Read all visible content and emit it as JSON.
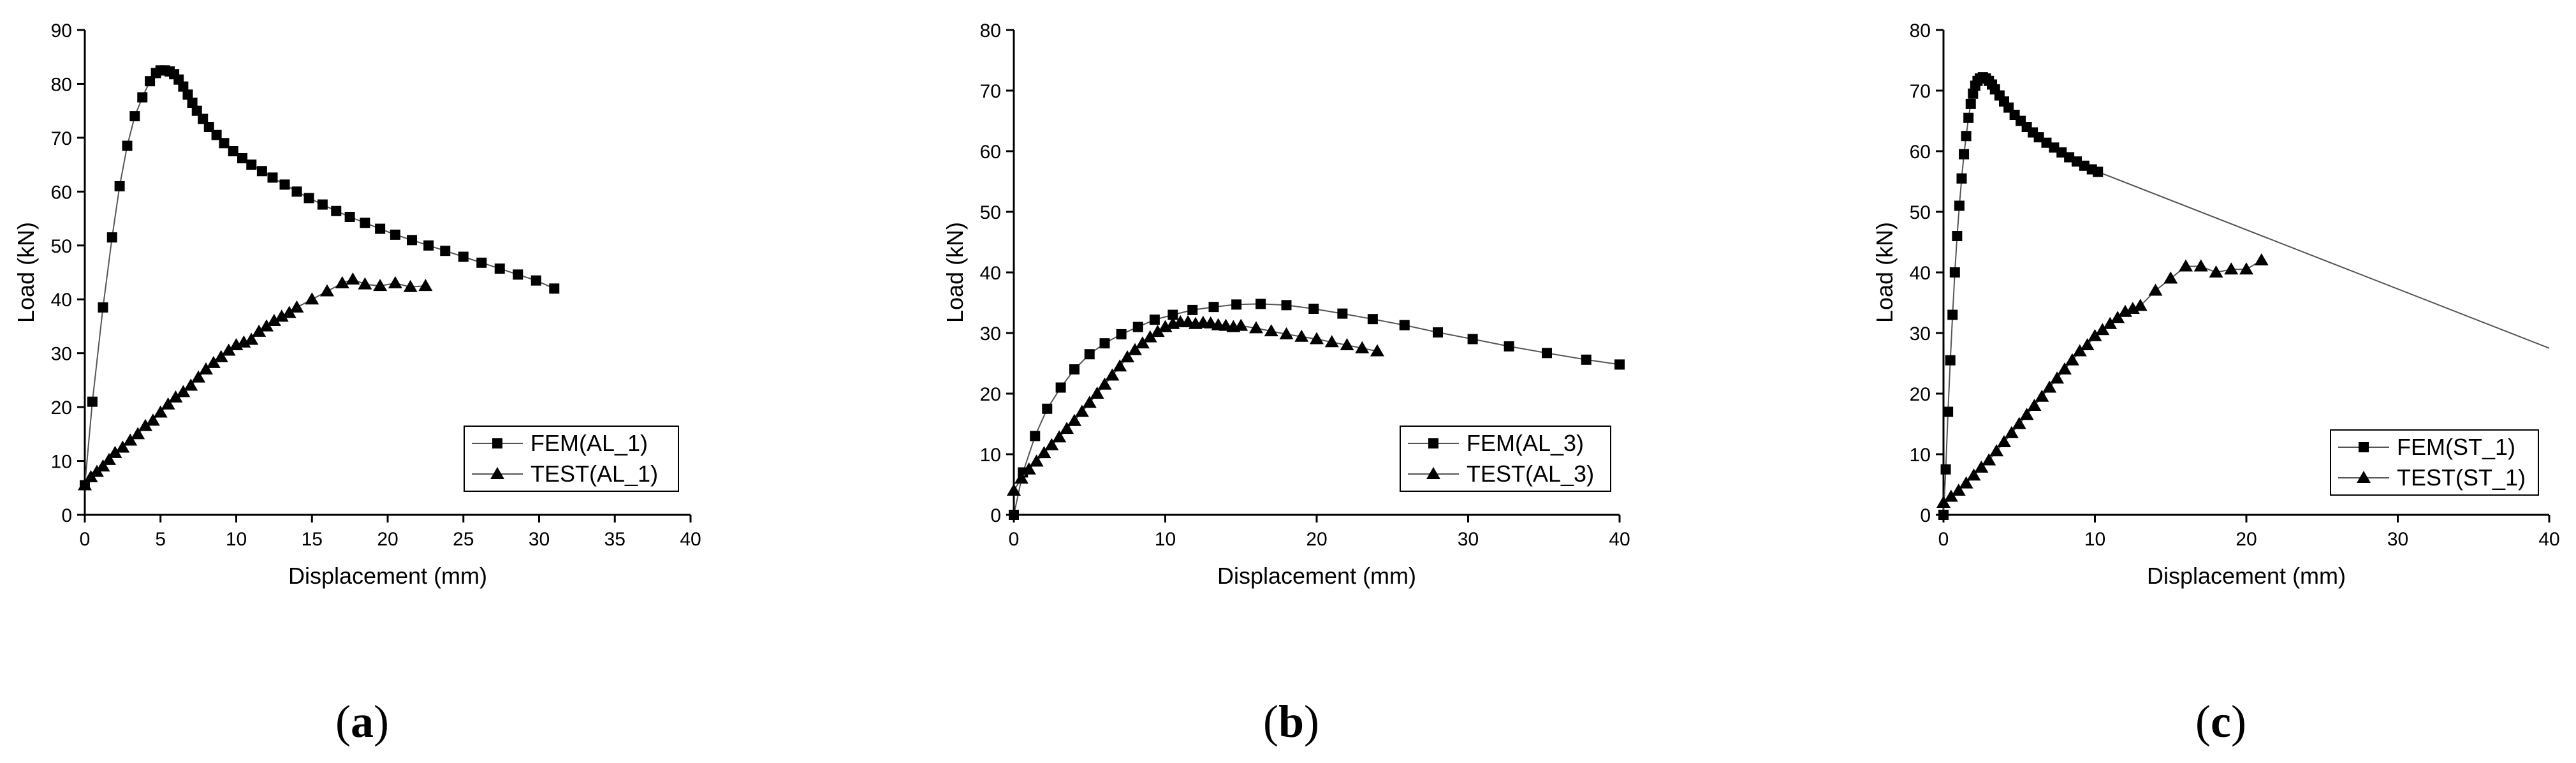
{
  "chart_data": [
    {
      "type": "line",
      "panel_label": "a",
      "xlabel": "Displacement (mm)",
      "ylabel": "Load (kN)",
      "xlim": [
        0,
        40
      ],
      "ylim": [
        0,
        90
      ],
      "xticks": [
        0,
        5,
        10,
        15,
        20,
        25,
        30,
        35,
        40
      ],
      "yticks": [
        0,
        10,
        20,
        30,
        40,
        50,
        60,
        70,
        80,
        90
      ],
      "legend_position": "bottom-right",
      "series": [
        {
          "name": "FEM(AL_1)",
          "marker": "square",
          "x": [
            0,
            0.5,
            1.2,
            1.8,
            2.3,
            2.8,
            3.3,
            3.8,
            4.3,
            4.7,
            5.0,
            5.3,
            5.6,
            5.9,
            6.2,
            6.5,
            6.8,
            7.1,
            7.4,
            7.8,
            8.2,
            8.7,
            9.2,
            9.8,
            10.4,
            11.0,
            11.7,
            12.4,
            13.2,
            14.0,
            14.8,
            15.7,
            16.6,
            17.5,
            18.5,
            19.5,
            20.5,
            21.6,
            22.7,
            23.8,
            25.0,
            26.2,
            27.4,
            28.6,
            29.8,
            31.0
          ],
          "y": [
            5.5,
            21,
            38.5,
            51.5,
            61,
            68.5,
            74,
            77.5,
            80.5,
            82,
            82.5,
            82.5,
            82.3,
            81.8,
            80.8,
            79.5,
            78,
            76.5,
            75,
            73.5,
            72,
            70.5,
            69,
            67.5,
            66.2,
            65,
            63.8,
            62.6,
            61.3,
            60,
            58.8,
            57.6,
            56.4,
            55.3,
            54.2,
            53.1,
            52,
            51,
            50,
            49,
            47.9,
            46.8,
            45.7,
            44.6,
            43.5,
            42
          ]
        },
        {
          "name": "TEST(AL_1)",
          "marker": "triangle",
          "x": [
            0,
            0.4,
            0.8,
            1.2,
            1.6,
            2.0,
            2.5,
            3.0,
            3.5,
            4.0,
            4.5,
            5.0,
            5.5,
            6.0,
            6.5,
            7.0,
            7.5,
            8.0,
            8.5,
            9.0,
            9.5,
            10.0,
            10.5,
            11.0,
            11.5,
            12.0,
            12.5,
            13.0,
            13.5,
            14.0,
            15.0,
            16.0,
            17.0,
            17.7,
            18.5,
            19.5,
            20.5,
            21.5,
            22.5
          ],
          "y": [
            5.5,
            7,
            8,
            9,
            10.2,
            11.5,
            12.5,
            13.8,
            15,
            16.5,
            17.5,
            19,
            20.5,
            21.8,
            22.8,
            24,
            25.5,
            27,
            28.2,
            29.3,
            30.5,
            31.5,
            32,
            32.5,
            34,
            35,
            36,
            36.8,
            37.5,
            38.5,
            40,
            41.5,
            43,
            43.7,
            42.8,
            42.5,
            43,
            42.3,
            42.5
          ]
        }
      ]
    },
    {
      "type": "line",
      "panel_label": "b",
      "xlabel": "Displacement (mm)",
      "ylabel": "Load (kN)",
      "xlim": [
        0,
        40
      ],
      "ylim": [
        0,
        80
      ],
      "xticks": [
        0,
        10,
        20,
        30,
        40
      ],
      "yticks": [
        0,
        10,
        20,
        30,
        40,
        50,
        60,
        70,
        80
      ],
      "legend_position": "bottom-right",
      "series": [
        {
          "name": "FEM(AL_3)",
          "marker": "square",
          "x": [
            0,
            0.6,
            1.4,
            2.2,
            3.1,
            4.0,
            5.0,
            6.0,
            7.1,
            8.2,
            9.3,
            10.5,
            11.8,
            13.2,
            14.7,
            16.3,
            18.0,
            19.8,
            21.7,
            23.7,
            25.8,
            28.0,
            30.3,
            32.7,
            35.2,
            37.8,
            40.0
          ],
          "y": [
            0,
            7,
            13,
            17.5,
            21,
            24,
            26.5,
            28.3,
            29.8,
            31,
            32.2,
            33,
            33.8,
            34.3,
            34.7,
            34.8,
            34.6,
            34,
            33.2,
            32.3,
            31.3,
            30.1,
            29,
            27.8,
            26.7,
            25.6,
            24.8
          ]
        },
        {
          "name": "TEST(AL_3)",
          "marker": "triangle",
          "x": [
            0,
            0.5,
            1.0,
            1.5,
            2.0,
            2.5,
            3.0,
            3.5,
            4.0,
            4.5,
            5.0,
            5.5,
            6.0,
            6.5,
            7.0,
            7.5,
            8.0,
            8.5,
            9.0,
            9.5,
            10.0,
            10.5,
            11.0,
            11.5,
            12.0,
            12.5,
            13.0,
            13.5,
            14.0,
            14.5,
            15.0,
            16.0,
            17.0,
            18.0,
            19.0,
            20.0,
            21.0,
            22.0,
            23.0,
            24.0
          ],
          "y": [
            4,
            6,
            7.5,
            8.8,
            10.2,
            11.5,
            12.8,
            14.2,
            15.5,
            17,
            18.5,
            20,
            21.5,
            23,
            24.5,
            26,
            27.2,
            28.3,
            29.3,
            30.2,
            31,
            31.5,
            31.8,
            31.8,
            31.5,
            31.7,
            31.6,
            31.3,
            31.2,
            31,
            31.2,
            30.8,
            30.3,
            29.8,
            29.4,
            29,
            28.5,
            28,
            27.5,
            27
          ]
        }
      ]
    },
    {
      "type": "line",
      "panel_label": "c",
      "xlabel": "Displacement (mm)",
      "ylabel": "Load (kN)",
      "xlim": [
        0,
        40
      ],
      "ylim": [
        0,
        80
      ],
      "xticks": [
        0,
        10,
        20,
        30,
        40
      ],
      "yticks": [
        0,
        10,
        20,
        30,
        40,
        50,
        60,
        70,
        80
      ],
      "legend_position": "bottom-right",
      "series": [
        {
          "name": "FEM(ST_1)",
          "marker": "square",
          "x": [
            0,
            0.15,
            0.3,
            0.45,
            0.6,
            0.75,
            0.9,
            1.05,
            1.2,
            1.35,
            1.5,
            1.65,
            1.8,
            1.95,
            2.1,
            2.25,
            2.4,
            2.6,
            2.8,
            3.0,
            3.2,
            3.4,
            3.7,
            4.0,
            4.3,
            4.7,
            5.1,
            5.5,
            5.9,
            6.3,
            6.8,
            7.3,
            7.8,
            8.3,
            8.8,
            9.3,
            9.8,
            10.2,
            40.0
          ],
          "y": [
            0,
            7.5,
            17,
            25.5,
            33,
            40,
            46,
            51,
            55.5,
            59.5,
            62.5,
            65.5,
            67.8,
            69.5,
            70.8,
            71.6,
            72,
            72.2,
            72,
            71.6,
            71,
            70.2,
            69.2,
            68.2,
            67.2,
            66,
            65,
            64,
            63.1,
            62.3,
            61.4,
            60.6,
            59.8,
            59,
            58.3,
            57.6,
            57,
            56.6,
            27.5
          ]
        },
        {
          "name": "TEST(ST_1)",
          "marker": "triangle",
          "x": [
            0,
            0.5,
            1.0,
            1.5,
            2.0,
            2.5,
            3.0,
            3.5,
            4.0,
            4.5,
            5.0,
            5.5,
            6.0,
            6.5,
            7.0,
            7.5,
            8.0,
            8.5,
            9.0,
            9.5,
            10.0,
            10.5,
            11.0,
            11.5,
            12.0,
            12.5,
            13.0,
            14.0,
            15.0,
            16.0,
            17.0,
            18.0,
            19.0,
            20.0,
            21.0
          ],
          "y": [
            2,
            3,
            4,
            5.2,
            6.5,
            7.8,
            9,
            10.5,
            12,
            13.5,
            15,
            16.5,
            18,
            19.5,
            21,
            22.5,
            24,
            25.5,
            27,
            28,
            29.5,
            30.5,
            31.5,
            32.5,
            33.5,
            34,
            34.5,
            37,
            39,
            41,
            41,
            40,
            40.5,
            40.5,
            42
          ]
        }
      ]
    }
  ]
}
